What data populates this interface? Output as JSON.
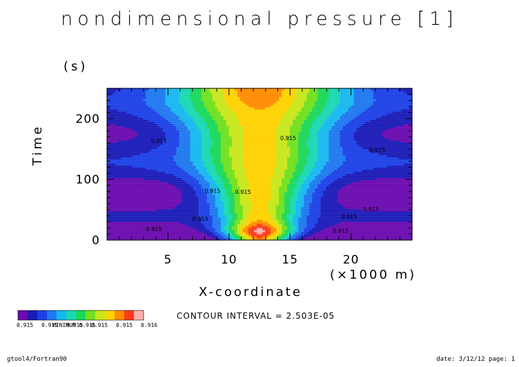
{
  "chart_data": {
    "type": "heatmap",
    "title": "nondimensional pressure [1]",
    "xlabel": "X-coordinate",
    "x_unit": "(×1000 m)",
    "ylabel": "Time",
    "y_unit": "(s)",
    "xlim": [
      0,
      25
    ],
    "ylim": [
      0,
      250
    ],
    "x_ticks": [
      "5",
      "10",
      "15",
      "20"
    ],
    "y_ticks": [
      "0",
      "100",
      "200"
    ],
    "contour_labels": [
      "0.915",
      "0.915",
      "0.915",
      "0.915",
      "0.915",
      "0.915",
      "0.915",
      "0.915",
      "0.915",
      "0.915"
    ],
    "contour_interval_text": "CONTOUR INTERVAL = 2.503E-05",
    "colorbar": {
      "colors": [
        "#6a0ab0",
        "#1a1ab8",
        "#1c40e6",
        "#1e78f0",
        "#16b8f0",
        "#18d8b4",
        "#1ad85a",
        "#70e01e",
        "#c8e61a",
        "#ffd200",
        "#ff8c00",
        "#ff3a18",
        "#ffb0b0"
      ],
      "labels": [
        "0.915",
        "0.915",
        "0.915",
        "0.915",
        "0.915",
        "0.916"
      ],
      "label_overlap_text": "MINIMUM 0.915"
    }
  },
  "footer": {
    "left": "gtool4/Fortran90",
    "right": "date: 3/12/12 page: 1"
  }
}
